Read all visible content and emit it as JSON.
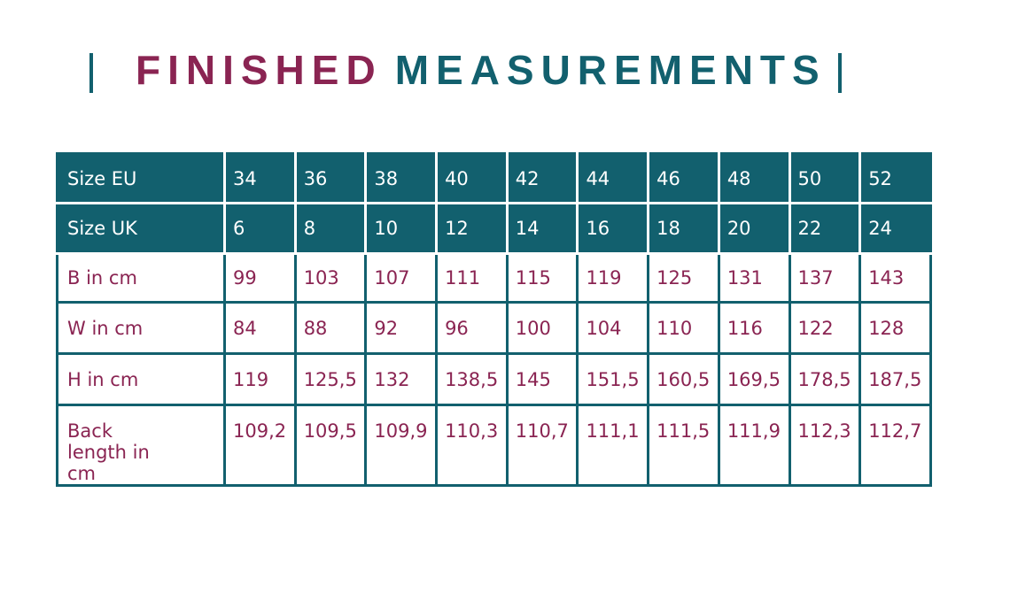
{
  "title": {
    "part1": "FINISHED",
    "part2": "MEASUREMENTS"
  },
  "table": {
    "rows": [
      [
        "Size EU",
        "34",
        "36",
        "38",
        "40",
        "42",
        "44",
        "46",
        "48",
        "50",
        "52"
      ],
      [
        "Size UK",
        "6",
        "8",
        "10",
        "12",
        "14",
        "16",
        "18",
        "20",
        "22",
        "24"
      ],
      [
        "B in cm",
        "99",
        "103",
        "107",
        "111",
        "115",
        "119",
        "125",
        "131",
        "137",
        "143"
      ],
      [
        "W in cm",
        "84",
        "88",
        "92",
        "96",
        "100",
        "104",
        "110",
        "116",
        "122",
        "128"
      ],
      [
        "H in cm",
        "119",
        "125,5",
        "132",
        "138,5",
        "145",
        "151,5",
        "160,5",
        "169,5",
        "178,5",
        "187,5"
      ],
      [
        "Back length in cm",
        "109,2",
        "109,5",
        "109,9",
        "110,3",
        "110,7",
        "111,1",
        "111,5",
        "111,9",
        "112,3",
        "112,7"
      ]
    ]
  }
}
